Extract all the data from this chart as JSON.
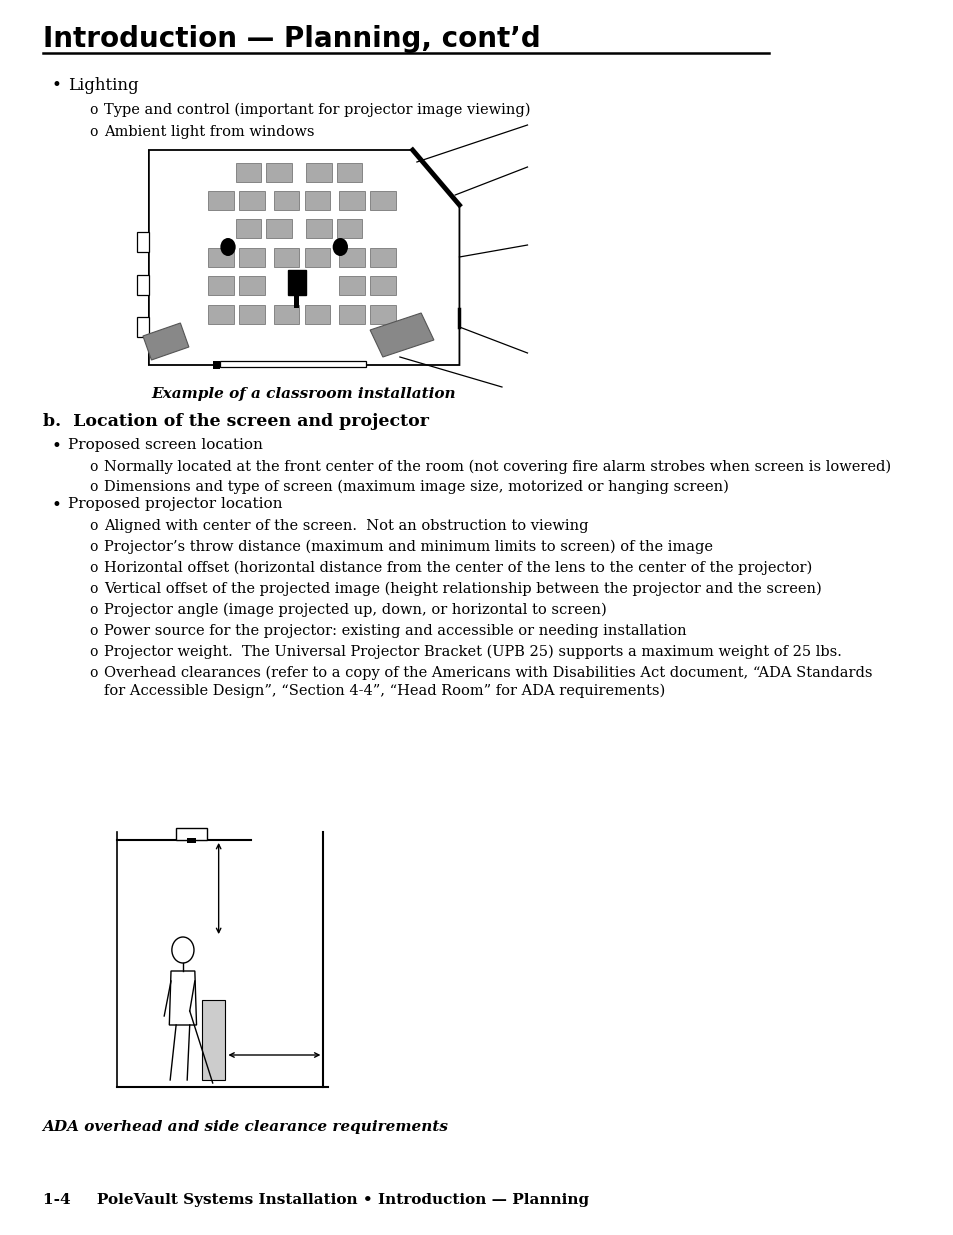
{
  "title": "Introduction — Planning, cont’d",
  "footer": "1-4     PoleVault Systems Installation • Introduction — Planning",
  "bg_color": "#ffffff",
  "bullet1": "Lighting",
  "sub1a": "Type and control (important for projector image viewing)",
  "sub1b": "Ambient light from windows",
  "caption1": "Example of a classroom installation",
  "heading_b": "b.  Location of the screen and projector",
  "bullet2": "Proposed screen location",
  "sub2a": "Normally located at the front center of the room (not covering fire alarm strobes when screen is lowered)",
  "sub2b": "Dimensions and type of screen (maximum image size, motorized or hanging screen)",
  "bullet3": "Proposed projector location",
  "sub3a": "Aligned with center of the screen.  Not an obstruction to viewing",
  "sub3b": "Projector’s throw distance (maximum and minimum limits to screen) of the image",
  "sub3c": "Horizontal offset (horizontal distance from the center of the lens to the center of the projector)",
  "sub3d": "Vertical offset of the projected image (height relationship between the projector and the screen)",
  "sub3e": "Projector angle (image projected up, down, or horizontal to screen)",
  "sub3f": "Power source for the projector: existing and accessible or needing installation",
  "sub3g": "Projector weight.  The Universal Projector Bracket (UPB 25) supports a maximum weight of 25 lbs.",
  "sub3h1": "Overhead clearances (refer to a copy of the Americans with Disabilities Act document, “ADA Standards",
  "sub3h2": "for Accessible Design”, “Section 4-4”, “Head Room” for ADA requirements)",
  "caption2": "ADA overhead and side clearance requirements"
}
